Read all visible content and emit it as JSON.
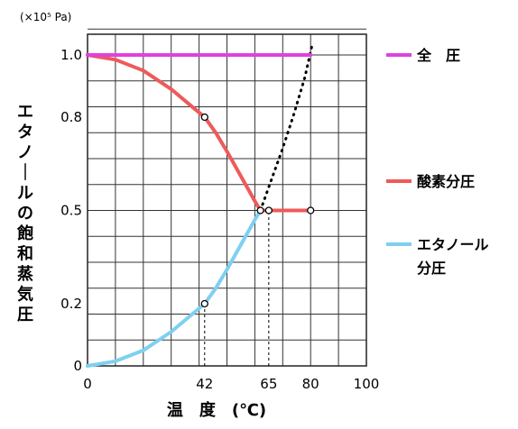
{
  "chart_data": {
    "type": "line",
    "unit_label": "(×10⁵ Pa)",
    "ylabel": "エタノールの飽和蒸気圧",
    "xlabel": "温　度　(℃)",
    "xlim": [
      0,
      100
    ],
    "ylim": [
      0,
      1.0
    ],
    "x_ticks": [
      {
        "value": 0,
        "label": "0"
      },
      {
        "value": 42,
        "label": "42"
      },
      {
        "value": 65,
        "label": "65"
      },
      {
        "value": 80,
        "label": "80"
      },
      {
        "value": 100,
        "label": "100"
      }
    ],
    "y_ticks": [
      {
        "value": 0,
        "label": "0"
      },
      {
        "value": 0.2,
        "label": "0.2"
      },
      {
        "value": 0.5,
        "label": "0.5"
      },
      {
        "value": 0.8,
        "label": "0.8"
      },
      {
        "value": 1.0,
        "label": "1.0"
      }
    ],
    "grid": true,
    "series": [
      {
        "name": "全 圧",
        "color": "#e040e0",
        "style": "solid",
        "x": [
          0,
          80
        ],
        "y": [
          1.0,
          1.0
        ]
      },
      {
        "name": "酸素分圧",
        "color": "#ee5a5a",
        "style": "solid",
        "x": [
          0,
          10,
          20,
          30,
          38,
          42,
          46,
          50,
          55,
          60,
          62,
          65,
          70,
          75,
          80
        ],
        "y": [
          1.0,
          0.985,
          0.95,
          0.89,
          0.83,
          0.8,
          0.75,
          0.69,
          0.61,
          0.53,
          0.5,
          0.5,
          0.5,
          0.5,
          0.5
        ]
      },
      {
        "name": "エタノール 分圧",
        "color": "#7ed0f0",
        "style": "solid",
        "x": [
          0,
          10,
          20,
          30,
          38,
          42,
          46,
          50,
          55,
          60,
          62,
          65,
          70,
          75,
          80
        ],
        "y": [
          0,
          0.015,
          0.05,
          0.11,
          0.17,
          0.2,
          0.25,
          0.31,
          0.39,
          0.47,
          0.5,
          0.5,
          0.5,
          0.5,
          0.5
        ]
      },
      {
        "color": "#000000",
        "style": "dotted",
        "x": [
          62,
          66,
          70,
          74,
          78,
          80.5
        ],
        "y": [
          0.5,
          0.6,
          0.7,
          0.81,
          0.93,
          1.03
        ]
      }
    ],
    "markers": [
      {
        "x": 42,
        "y": 0.8
      },
      {
        "x": 42,
        "y": 0.2
      },
      {
        "x": 62,
        "y": 0.5
      },
      {
        "x": 65,
        "y": 0.5
      },
      {
        "x": 80,
        "y": 0.5
      }
    ],
    "guide_lines": [
      {
        "x": 42,
        "y_from": 0,
        "y_to": 0.2
      },
      {
        "x": 65,
        "y_from": 0,
        "y_to": 0.5
      }
    ],
    "legend": {
      "placement": "right",
      "items": [
        {
          "label": "全　圧",
          "color": "#e040e0"
        },
        {
          "label": "酸素分圧",
          "color": "#ee5a5a"
        },
        {
          "label": "エタノール",
          "line2": "分圧",
          "color": "#7ed0f0"
        }
      ]
    }
  }
}
